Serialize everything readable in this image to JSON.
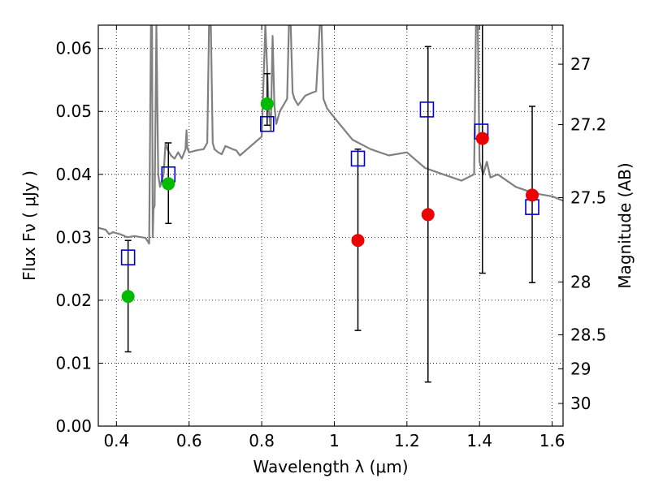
{
  "chart_data": {
    "type": "scatter",
    "xlabel": "Wavelength  λ (μm)",
    "ylabel": "Flux  Fν  ( μJy )",
    "y2label": "Magnitude (AB)",
    "xlim": [
      0.35,
      1.63
    ],
    "ylim": [
      0.0,
      0.0637
    ],
    "grid": true,
    "x_ticks": [
      {
        "value": 0.4,
        "label": "0.4"
      },
      {
        "value": 0.6,
        "label": "0.6"
      },
      {
        "value": 0.8,
        "label": "0.8"
      },
      {
        "value": 1.0,
        "label": "1"
      },
      {
        "value": 1.2,
        "label": "1.2"
      },
      {
        "value": 1.4,
        "label": "1.4"
      },
      {
        "value": 1.6,
        "label": "1.6"
      }
    ],
    "y_ticks": [
      {
        "value": 0.0,
        "label": "0.00"
      },
      {
        "value": 0.01,
        "label": "0.01"
      },
      {
        "value": 0.02,
        "label": "0.02"
      },
      {
        "value": 0.03,
        "label": "0.03"
      },
      {
        "value": 0.04,
        "label": "0.04"
      },
      {
        "value": 0.05,
        "label": "0.05"
      },
      {
        "value": 0.06,
        "label": "0.06"
      }
    ],
    "y2_ticks": [
      {
        "value": 27,
        "flux": 0.0575,
        "label": "27"
      },
      {
        "value": 27.2,
        "flux": 0.0479,
        "label": "27.2"
      },
      {
        "value": 27.5,
        "flux": 0.0363,
        "label": "27.5"
      },
      {
        "value": 28,
        "flux": 0.0229,
        "label": "28"
      },
      {
        "value": 28.5,
        "flux": 0.0145,
        "label": "28.5"
      },
      {
        "value": 29,
        "flux": 0.0091,
        "label": "29"
      },
      {
        "value": 30,
        "flux": 0.0036,
        "label": "30"
      }
    ],
    "series": [
      {
        "type": "line",
        "color": "#808080",
        "x": [
          0.35,
          0.37,
          0.38,
          0.39,
          0.41,
          0.43,
          0.45,
          0.47,
          0.48,
          0.49,
          0.495,
          0.498,
          0.5,
          0.502,
          0.505,
          0.51,
          0.515,
          0.52,
          0.53,
          0.535,
          0.54,
          0.55,
          0.56,
          0.57,
          0.58,
          0.59,
          0.593,
          0.595,
          0.6,
          0.62,
          0.64,
          0.65,
          0.655,
          0.66,
          0.665,
          0.67,
          0.68,
          0.69,
          0.7,
          0.72,
          0.73,
          0.74,
          0.76,
          0.78,
          0.8,
          0.81,
          0.82,
          0.825,
          0.83,
          0.835,
          0.84,
          0.85,
          0.86,
          0.87,
          0.875,
          0.88,
          0.885,
          0.89,
          0.9,
          0.92,
          0.94,
          0.95,
          0.96,
          0.965,
          0.97,
          0.98,
          1.0,
          1.05,
          1.1,
          1.15,
          1.2,
          1.25,
          1.3,
          1.35,
          1.385,
          1.39,
          1.395,
          1.4,
          1.41,
          1.42,
          1.43,
          1.45,
          1.5,
          1.55,
          1.6,
          1.63
        ],
        "y": [
          0.0315,
          0.0312,
          0.0305,
          0.0308,
          0.0305,
          0.03,
          0.0302,
          0.03,
          0.0299,
          0.029,
          0.0637,
          0.0637,
          0.03,
          0.0345,
          0.035,
          0.0637,
          0.04,
          0.038,
          0.04,
          0.045,
          0.044,
          0.043,
          0.0425,
          0.0435,
          0.0425,
          0.044,
          0.047,
          0.0442,
          0.0435,
          0.0438,
          0.044,
          0.045,
          0.0637,
          0.0637,
          0.045,
          0.044,
          0.0435,
          0.0432,
          0.0445,
          0.044,
          0.0438,
          0.043,
          0.044,
          0.045,
          0.046,
          0.0637,
          0.05,
          0.047,
          0.062,
          0.051,
          0.048,
          0.05,
          0.051,
          0.052,
          0.0637,
          0.0637,
          0.053,
          0.052,
          0.051,
          0.0525,
          0.053,
          0.0532,
          0.0637,
          0.0637,
          0.052,
          0.0505,
          0.049,
          0.0455,
          0.044,
          0.043,
          0.0435,
          0.041,
          0.04,
          0.039,
          0.04,
          0.0637,
          0.0637,
          0.042,
          0.04,
          0.042,
          0.0395,
          0.04,
          0.038,
          0.037,
          0.0365,
          0.0358
        ]
      },
      {
        "type": "scatter",
        "marker": "open-square",
        "color": "#0000cc",
        "x": [
          0.432,
          0.543,
          0.815,
          1.065,
          1.255,
          1.405,
          1.545
        ],
        "y": [
          0.0268,
          0.04,
          0.048,
          0.0425,
          0.0503,
          0.0468,
          0.0348
        ]
      },
      {
        "type": "scatter",
        "marker": "filled-circle",
        "color": "#00bb00",
        "x": [
          0.432,
          0.543,
          0.815
        ],
        "y": [
          0.0206,
          0.0385,
          0.0512
        ],
        "yerr": [
          [
            0.0118,
            0.0295
          ],
          [
            0.0322,
            0.045
          ],
          [
            0.0478,
            0.056
          ]
        ]
      },
      {
        "type": "scatter",
        "marker": "filled-circle",
        "color": "#ee0000",
        "x": [
          1.065,
          1.258,
          1.408,
          1.545
        ],
        "y": [
          0.0295,
          0.0336,
          0.0457,
          0.0367
        ],
        "yerr": [
          [
            0.0152,
            0.044
          ],
          [
            0.007,
            0.0603
          ],
          [
            0.0243,
            0.0637
          ],
          [
            0.0228,
            0.0508
          ]
        ]
      }
    ]
  }
}
